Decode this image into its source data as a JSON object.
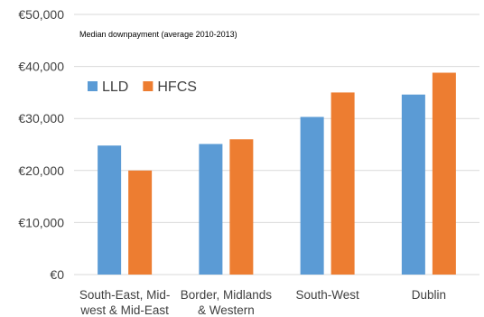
{
  "chart_data": {
    "type": "bar",
    "title": "Median downpayment (average 2010-2013)",
    "xlabel": "",
    "ylabel": "",
    "categories": [
      [
        "South-East, Mid-",
        "west & Mid-East"
      ],
      [
        "Border, Midlands",
        "& Western"
      ],
      [
        "South-West"
      ],
      [
        "Dublin"
      ]
    ],
    "series": [
      {
        "name": "LLD",
        "color": "#5B9BD5",
        "values": [
          24800,
          25100,
          30300,
          34600
        ]
      },
      {
        "name": "HFCS",
        "color": "#ED7D31",
        "values": [
          20000,
          26000,
          35000,
          38800
        ]
      }
    ],
    "ylim": [
      0,
      50000
    ],
    "yticks": [
      0,
      10000,
      20000,
      30000,
      40000,
      50000
    ],
    "ytick_labels": [
      "€0",
      "€10,000",
      "€20,000",
      "€30,000",
      "€40,000",
      "€50,000"
    ],
    "grid": true,
    "legend": "top-left"
  }
}
